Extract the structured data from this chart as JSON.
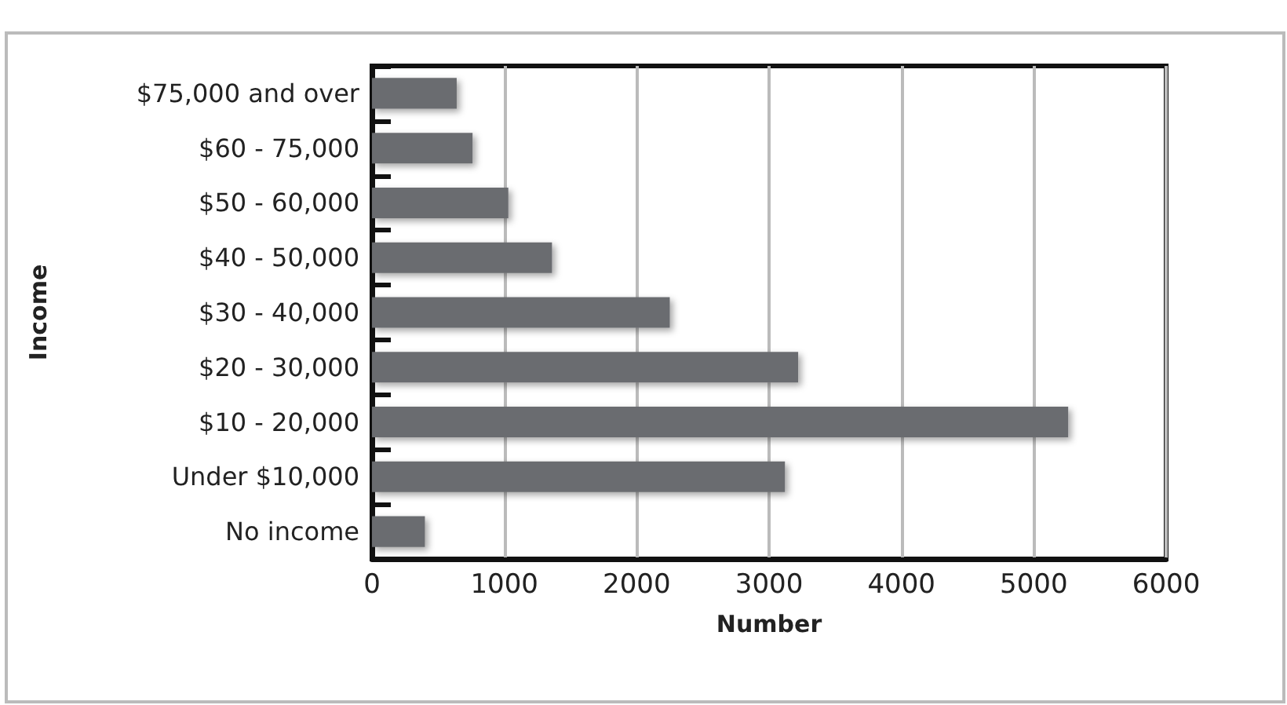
{
  "chart_data": {
    "type": "bar",
    "orientation": "horizontal",
    "xlabel": "Number",
    "ylabel": "Income",
    "categories": [
      "$75,000 and over",
      "$60 - 75,000",
      "$50 - 60,000",
      "$40 - 50,000",
      "$30 - 40,000",
      "$20 - 30,000",
      "$10 - 20,000",
      "Under $10,000",
      "No income"
    ],
    "values": [
      640,
      760,
      1030,
      1360,
      2250,
      3220,
      5260,
      3120,
      400
    ],
    "color": "#6b6c70",
    "xlim": [
      0,
      6000
    ],
    "xticks": [
      0,
      1000,
      2000,
      3000,
      4000,
      5000,
      6000
    ],
    "grid": "x"
  }
}
